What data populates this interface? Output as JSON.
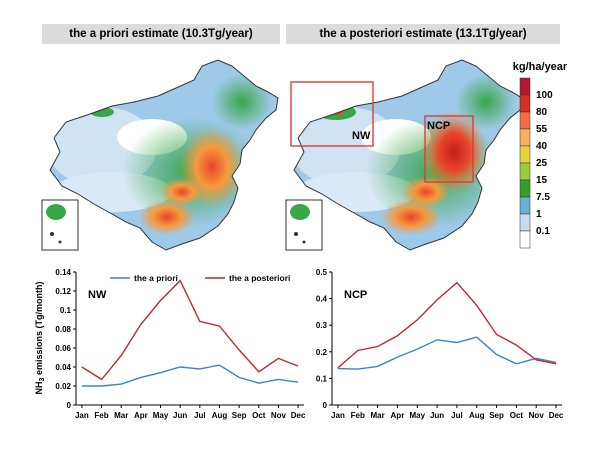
{
  "headers": {
    "left": "the a priori estimate (10.3Tg/year)",
    "right": "the a posteriori estimate (13.1Tg/year)"
  },
  "map": {
    "colorbar_title": "kg/ha/year",
    "colorbar_labels": [
      "100",
      "80",
      "55",
      "40",
      "25",
      "15",
      "7.5",
      "1",
      "0.1"
    ],
    "colorbar_colors": [
      "#b2182b",
      "#d7301f",
      "#f46d43",
      "#fdae61",
      "#e6d23a",
      "#9ccc3c",
      "#33a02c",
      "#6baed6",
      "#c6dbef",
      "#ffffff"
    ],
    "region_labels": {
      "nw": "NW",
      "ncp": "NCP"
    },
    "box_color": "#e03a3a"
  },
  "chart_data": [
    {
      "type": "line",
      "annotation": "NW",
      "ylabel": "NH3 emissions (Tg/month)",
      "categories": [
        "Jan",
        "Feb",
        "Mar",
        "Apr",
        "May",
        "Jun",
        "Jul",
        "Aug",
        "Sep",
        "Oct",
        "Nov",
        "Dec"
      ],
      "ylim": [
        0,
        0.14
      ],
      "yticks": [
        "0",
        "0.02",
        "0.04",
        "0.06",
        "0.08",
        "0.1",
        "0.12",
        "0.14"
      ],
      "series": [
        {
          "name": "the a priori",
          "color": "#3b86c0",
          "values": [
            0.02,
            0.02,
            0.022,
            0.029,
            0.034,
            0.04,
            0.038,
            0.042,
            0.029,
            0.023,
            0.027,
            0.024
          ]
        },
        {
          "name": "the a posteriori",
          "color": "#c0282d",
          "values": [
            0.04,
            0.027,
            0.052,
            0.085,
            0.11,
            0.131,
            0.088,
            0.083,
            0.058,
            0.035,
            0.049,
            0.041
          ]
        }
      ]
    },
    {
      "type": "line",
      "annotation": "NCP",
      "categories": [
        "Jan",
        "Feb",
        "Mar",
        "Apr",
        "May",
        "Jun",
        "Jul",
        "Aug",
        "Sep",
        "Oct",
        "Nov",
        "Dec"
      ],
      "ylim": [
        0,
        0.5
      ],
      "yticks": [
        "0",
        "0.1",
        "0.2",
        "0.3",
        "0.4",
        "0.5"
      ],
      "series": [
        {
          "name": "the a priori",
          "color": "#3b86c0",
          "values": [
            0.137,
            0.135,
            0.145,
            0.18,
            0.21,
            0.245,
            0.235,
            0.255,
            0.19,
            0.155,
            0.175,
            0.16
          ]
        },
        {
          "name": "the a posteriori",
          "color": "#c0282d",
          "values": [
            0.14,
            0.205,
            0.22,
            0.26,
            0.32,
            0.395,
            0.46,
            0.375,
            0.265,
            0.225,
            0.17,
            0.155
          ]
        }
      ]
    }
  ]
}
